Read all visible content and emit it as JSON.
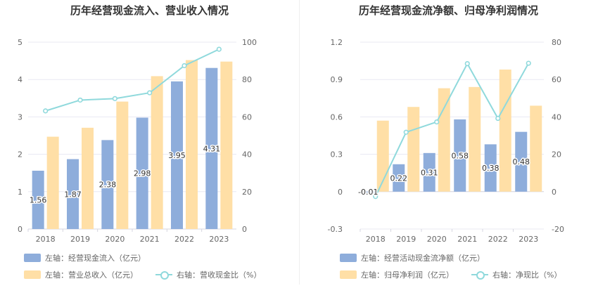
{
  "colors": {
    "bar_primary": "#8eaddb",
    "bar_secondary": "#ffdfa6",
    "line": "#8fd9dc",
    "grid": "#e8e8f2",
    "axis_text": "#666666"
  },
  "chart_data": [
    {
      "type": "bar+line",
      "title": "历年经营现金流入、营业收入情况",
      "categories": [
        "2018",
        "2019",
        "2020",
        "2021",
        "2022",
        "2023"
      ],
      "left_axis": {
        "ylim": [
          0,
          5
        ],
        "ticks": [
          "0",
          "1",
          "2",
          "3",
          "4",
          "5"
        ]
      },
      "right_axis": {
        "ylim": [
          0,
          100
        ],
        "ticks": [
          "0",
          "20",
          "40",
          "60",
          "80",
          "100"
        ]
      },
      "series": [
        {
          "name": "左轴：经营现金流入（亿元）",
          "type": "bar",
          "axis": "left",
          "values": [
            1.56,
            1.87,
            2.38,
            2.98,
            3.95,
            4.31
          ],
          "labels": [
            "1.56",
            "1.87",
            "2.38",
            "2.98",
            "3.95",
            "4.31"
          ]
        },
        {
          "name": "左轴：营业总收入（亿元）",
          "type": "bar",
          "axis": "left",
          "values": [
            2.47,
            2.71,
            3.41,
            4.09,
            4.52,
            4.48
          ]
        },
        {
          "name": "右轴：营收现金比（%）",
          "type": "line",
          "axis": "right",
          "values": [
            63.2,
            69.0,
            69.8,
            72.9,
            87.4,
            96.2
          ]
        }
      ]
    },
    {
      "type": "bar+line",
      "title": "历年经营现金流净额、归母净利润情况",
      "categories": [
        "2018",
        "2019",
        "2020",
        "2021",
        "2022",
        "2023"
      ],
      "left_axis": {
        "ylim": [
          -0.3,
          1.2
        ],
        "ticks": [
          "-0.3",
          "0",
          "0.3",
          "0.6",
          "0.9",
          "1.2"
        ]
      },
      "right_axis": {
        "ylim": [
          -20,
          80
        ],
        "ticks": [
          "-20",
          "0",
          "20",
          "40",
          "60",
          "80"
        ]
      },
      "series": [
        {
          "name": "左轴：经营活动现金流净额（亿元）",
          "type": "bar",
          "axis": "left",
          "values": [
            -0.01,
            0.22,
            0.31,
            0.58,
            0.38,
            0.48
          ],
          "labels": [
            "-0.01",
            "0.22",
            "0.31",
            "0.58",
            "0.38",
            "0.48"
          ]
        },
        {
          "name": "左轴：归母净利润（亿元）",
          "type": "bar",
          "axis": "left",
          "values": [
            0.57,
            0.68,
            0.83,
            0.84,
            0.98,
            0.69
          ]
        },
        {
          "name": "右轴：净现比（%）",
          "type": "line",
          "axis": "right",
          "values": [
            -2.6,
            31.8,
            37.3,
            68.5,
            39.2,
            68.7
          ]
        }
      ]
    }
  ]
}
